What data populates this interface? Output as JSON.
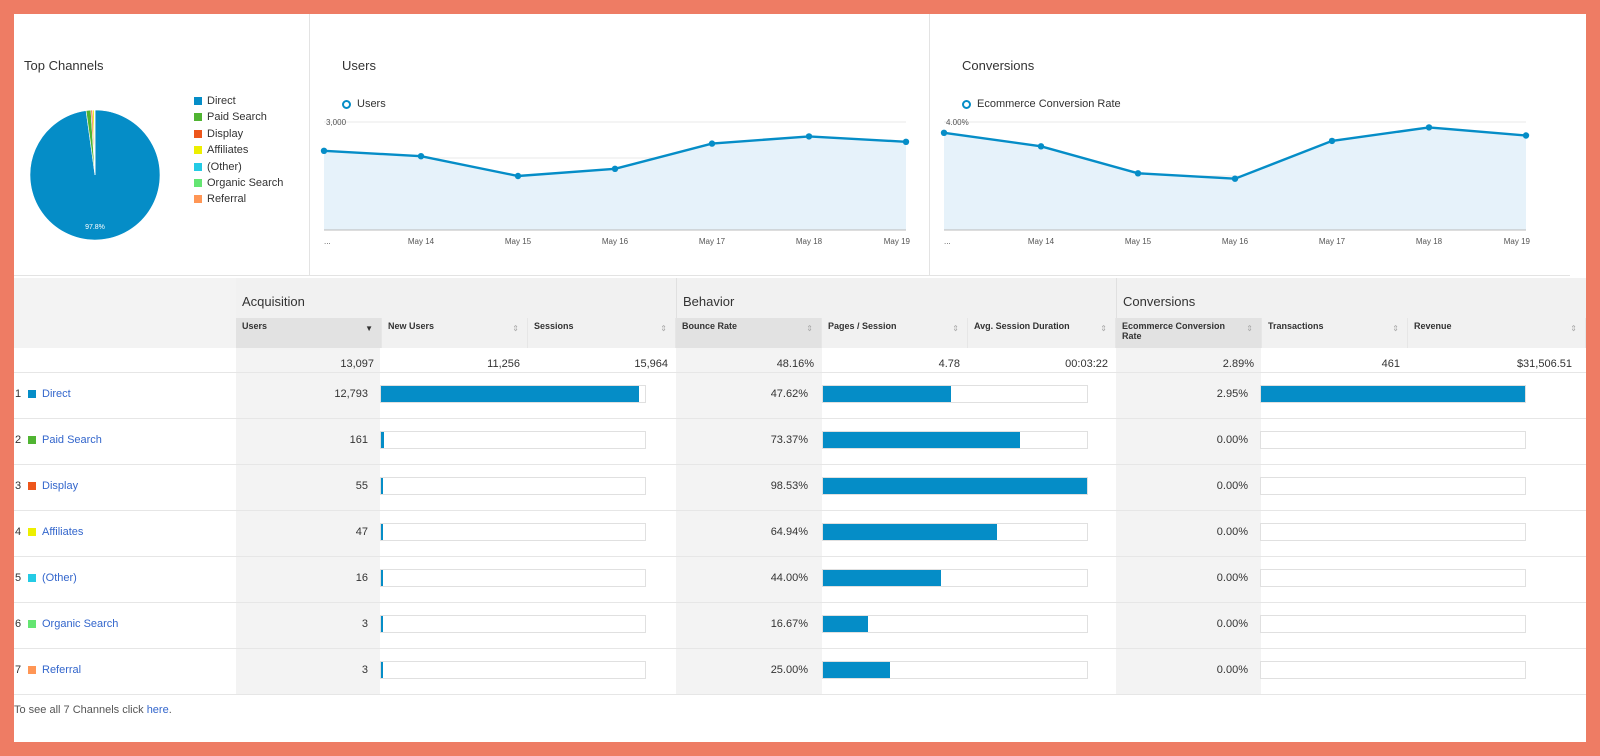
{
  "top_channels": {
    "title": "Top Channels",
    "pie_label": "97.8%",
    "slices": [
      {
        "name": "Direct",
        "color": "#058dc7",
        "percent": 97.8
      },
      {
        "name": "Paid Search",
        "color": "#50b432",
        "percent": 1.2
      },
      {
        "name": "Display",
        "color": "#ed561b",
        "percent": 0.4
      },
      {
        "name": "Affiliates",
        "color": "#edef00",
        "percent": 0.4
      },
      {
        "name": "(Other)",
        "color": "#24cbe5",
        "percent": 0.1
      },
      {
        "name": "Organic Search",
        "color": "#64e572",
        "percent": 0.05
      },
      {
        "name": "Referral",
        "color": "#ff9655",
        "percent": 0.05
      }
    ]
  },
  "chart_data": [
    {
      "type": "area",
      "title": "Users",
      "series": [
        {
          "name": "Users",
          "values": [
            2200,
            2050,
            1500,
            1700,
            2400,
            2600,
            2450
          ]
        }
      ],
      "x": [
        "...",
        "May 14",
        "May 15",
        "May 16",
        "May 17",
        "May 18",
        "May 19"
      ],
      "yticks": [
        "3,000",
        "2,000",
        "1,000"
      ],
      "ylim": [
        0,
        3000
      ],
      "color": "#058dc7"
    },
    {
      "type": "area",
      "title": "Conversions",
      "series": [
        {
          "name": "Ecommerce Conversion Rate",
          "values": [
            3.6,
            3.1,
            2.1,
            1.9,
            3.3,
            3.8,
            3.5
          ]
        }
      ],
      "x": [
        "...",
        "May 14",
        "May 15",
        "May 16",
        "May 17",
        "May 18",
        "May 19"
      ],
      "yticks": [
        "4.00%",
        "2.00%"
      ],
      "ylim": [
        0,
        4
      ],
      "color": "#058dc7"
    }
  ],
  "table": {
    "groups": {
      "acquisition": "Acquisition",
      "behavior": "Behavior",
      "conversions": "Conversions"
    },
    "columns": {
      "users": "Users",
      "new_users": "New Users",
      "sessions": "Sessions",
      "bounce_rate": "Bounce Rate",
      "pages_session": "Pages / Session",
      "avg_duration": "Avg. Session Duration",
      "ecr": "Ecommerce Conversion Rate",
      "transactions": "Transactions",
      "revenue": "Revenue"
    },
    "totals": {
      "users": "13,097",
      "new_users": "11,256",
      "sessions": "15,964",
      "bounce_rate": "48.16%",
      "pages_session": "4.78",
      "avg_duration": "00:03:22",
      "ecr": "2.89%",
      "transactions": "461",
      "revenue": "$31,506.51"
    },
    "rows": [
      {
        "rank": "1",
        "channel": "Direct",
        "color": "#058dc7",
        "users": "12,793",
        "users_share": 0.977,
        "bounce": "47.62%",
        "bounce_share": 0.483,
        "ecr": "2.95%",
        "ecr_share": 1.0
      },
      {
        "rank": "2",
        "channel": "Paid Search",
        "color": "#50b432",
        "users": "161",
        "users_share": 0.012,
        "bounce": "73.37%",
        "bounce_share": 0.745,
        "ecr": "0.00%",
        "ecr_share": 0
      },
      {
        "rank": "3",
        "channel": "Display",
        "color": "#ed561b",
        "users": "55",
        "users_share": 0.004,
        "bounce": "98.53%",
        "bounce_share": 1.0,
        "ecr": "0.00%",
        "ecr_share": 0
      },
      {
        "rank": "4",
        "channel": "Affiliates",
        "color": "#edef00",
        "users": "47",
        "users_share": 0.004,
        "bounce": "64.94%",
        "bounce_share": 0.659,
        "ecr": "0.00%",
        "ecr_share": 0
      },
      {
        "rank": "5",
        "channel": "(Other)",
        "color": "#24cbe5",
        "users": "16",
        "users_share": 0.001,
        "bounce": "44.00%",
        "bounce_share": 0.447,
        "ecr": "0.00%",
        "ecr_share": 0
      },
      {
        "rank": "6",
        "channel": "Organic Search",
        "color": "#64e572",
        "users": "3",
        "users_share": 0.0,
        "bounce": "16.67%",
        "bounce_share": 0.169,
        "ecr": "0.00%",
        "ecr_share": 0
      },
      {
        "rank": "7",
        "channel": "Referral",
        "color": "#ff9655",
        "users": "3",
        "users_share": 0.0,
        "bounce": "25.00%",
        "bounce_share": 0.254,
        "ecr": "0.00%",
        "ecr_share": 0
      }
    ]
  },
  "footer": {
    "text": "To see all 7 Channels click ",
    "link": "here",
    "end": "."
  }
}
